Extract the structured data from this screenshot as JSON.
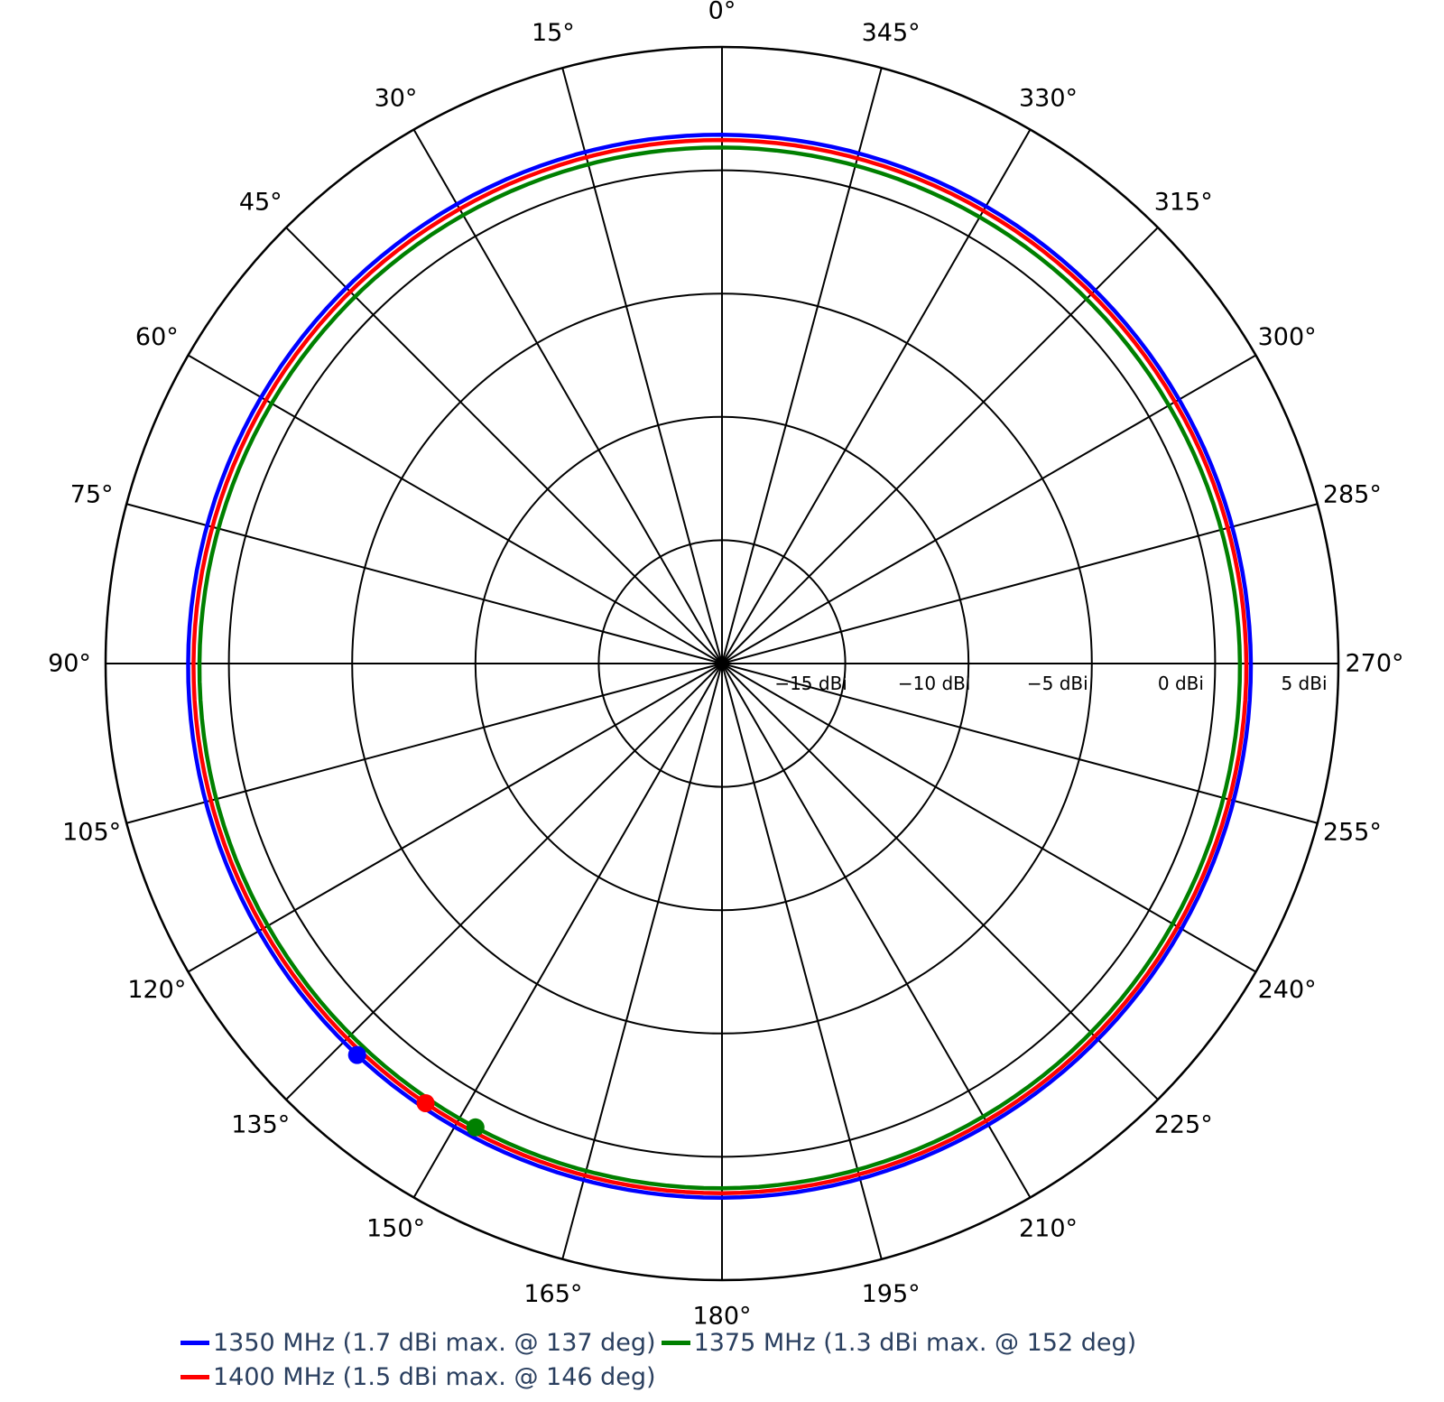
{
  "chart_data": {
    "type": "polar-line",
    "angular_axis": {
      "direction": "counterclockwise",
      "rotation_deg": 90,
      "tick_step_deg": 15,
      "tick_labels": [
        "0°",
        "15°",
        "30°",
        "45°",
        "60°",
        "75°",
        "90°",
        "105°",
        "120°",
        "135°",
        "150°",
        "165°",
        "180°",
        "195°",
        "210°",
        "225°",
        "240°",
        "255°",
        "270°",
        "285°",
        "300°",
        "315°",
        "330°",
        "345°"
      ]
    },
    "radial_axis": {
      "unit": "dBi",
      "range": [
        -20,
        5
      ],
      "tick_values": [
        -15,
        -10,
        -5,
        0,
        5
      ],
      "tick_labels": [
        "−15 dBi",
        "−10 dBi",
        "−5 dBi",
        "0 dBi",
        "5 dBi"
      ],
      "grid": true
    },
    "series": [
      {
        "name": "1350 MHz (1.7 dBi max. @ 137 deg)",
        "color": "#0000ff",
        "mean_gain_dbi": 1.55,
        "variation_db": 0.15,
        "max_gain_dbi": 1.7,
        "max_angle_deg": 137
      },
      {
        "name": "1375 MHz (1.3 dBi max. @ 152 deg)",
        "color": "#008000",
        "mean_gain_dbi": 1.1,
        "variation_db": 0.2,
        "max_gain_dbi": 1.3,
        "max_angle_deg": 152
      },
      {
        "name": "1400 MHz (1.5 dBi max. @ 146 deg)",
        "color": "#ff0000",
        "mean_gain_dbi": 1.35,
        "variation_db": 0.15,
        "max_gain_dbi": 1.5,
        "max_angle_deg": 146
      }
    ],
    "legend_position": "bottom"
  },
  "colors": {
    "grid": "#000000",
    "legend_text": "#2a3f5f"
  }
}
